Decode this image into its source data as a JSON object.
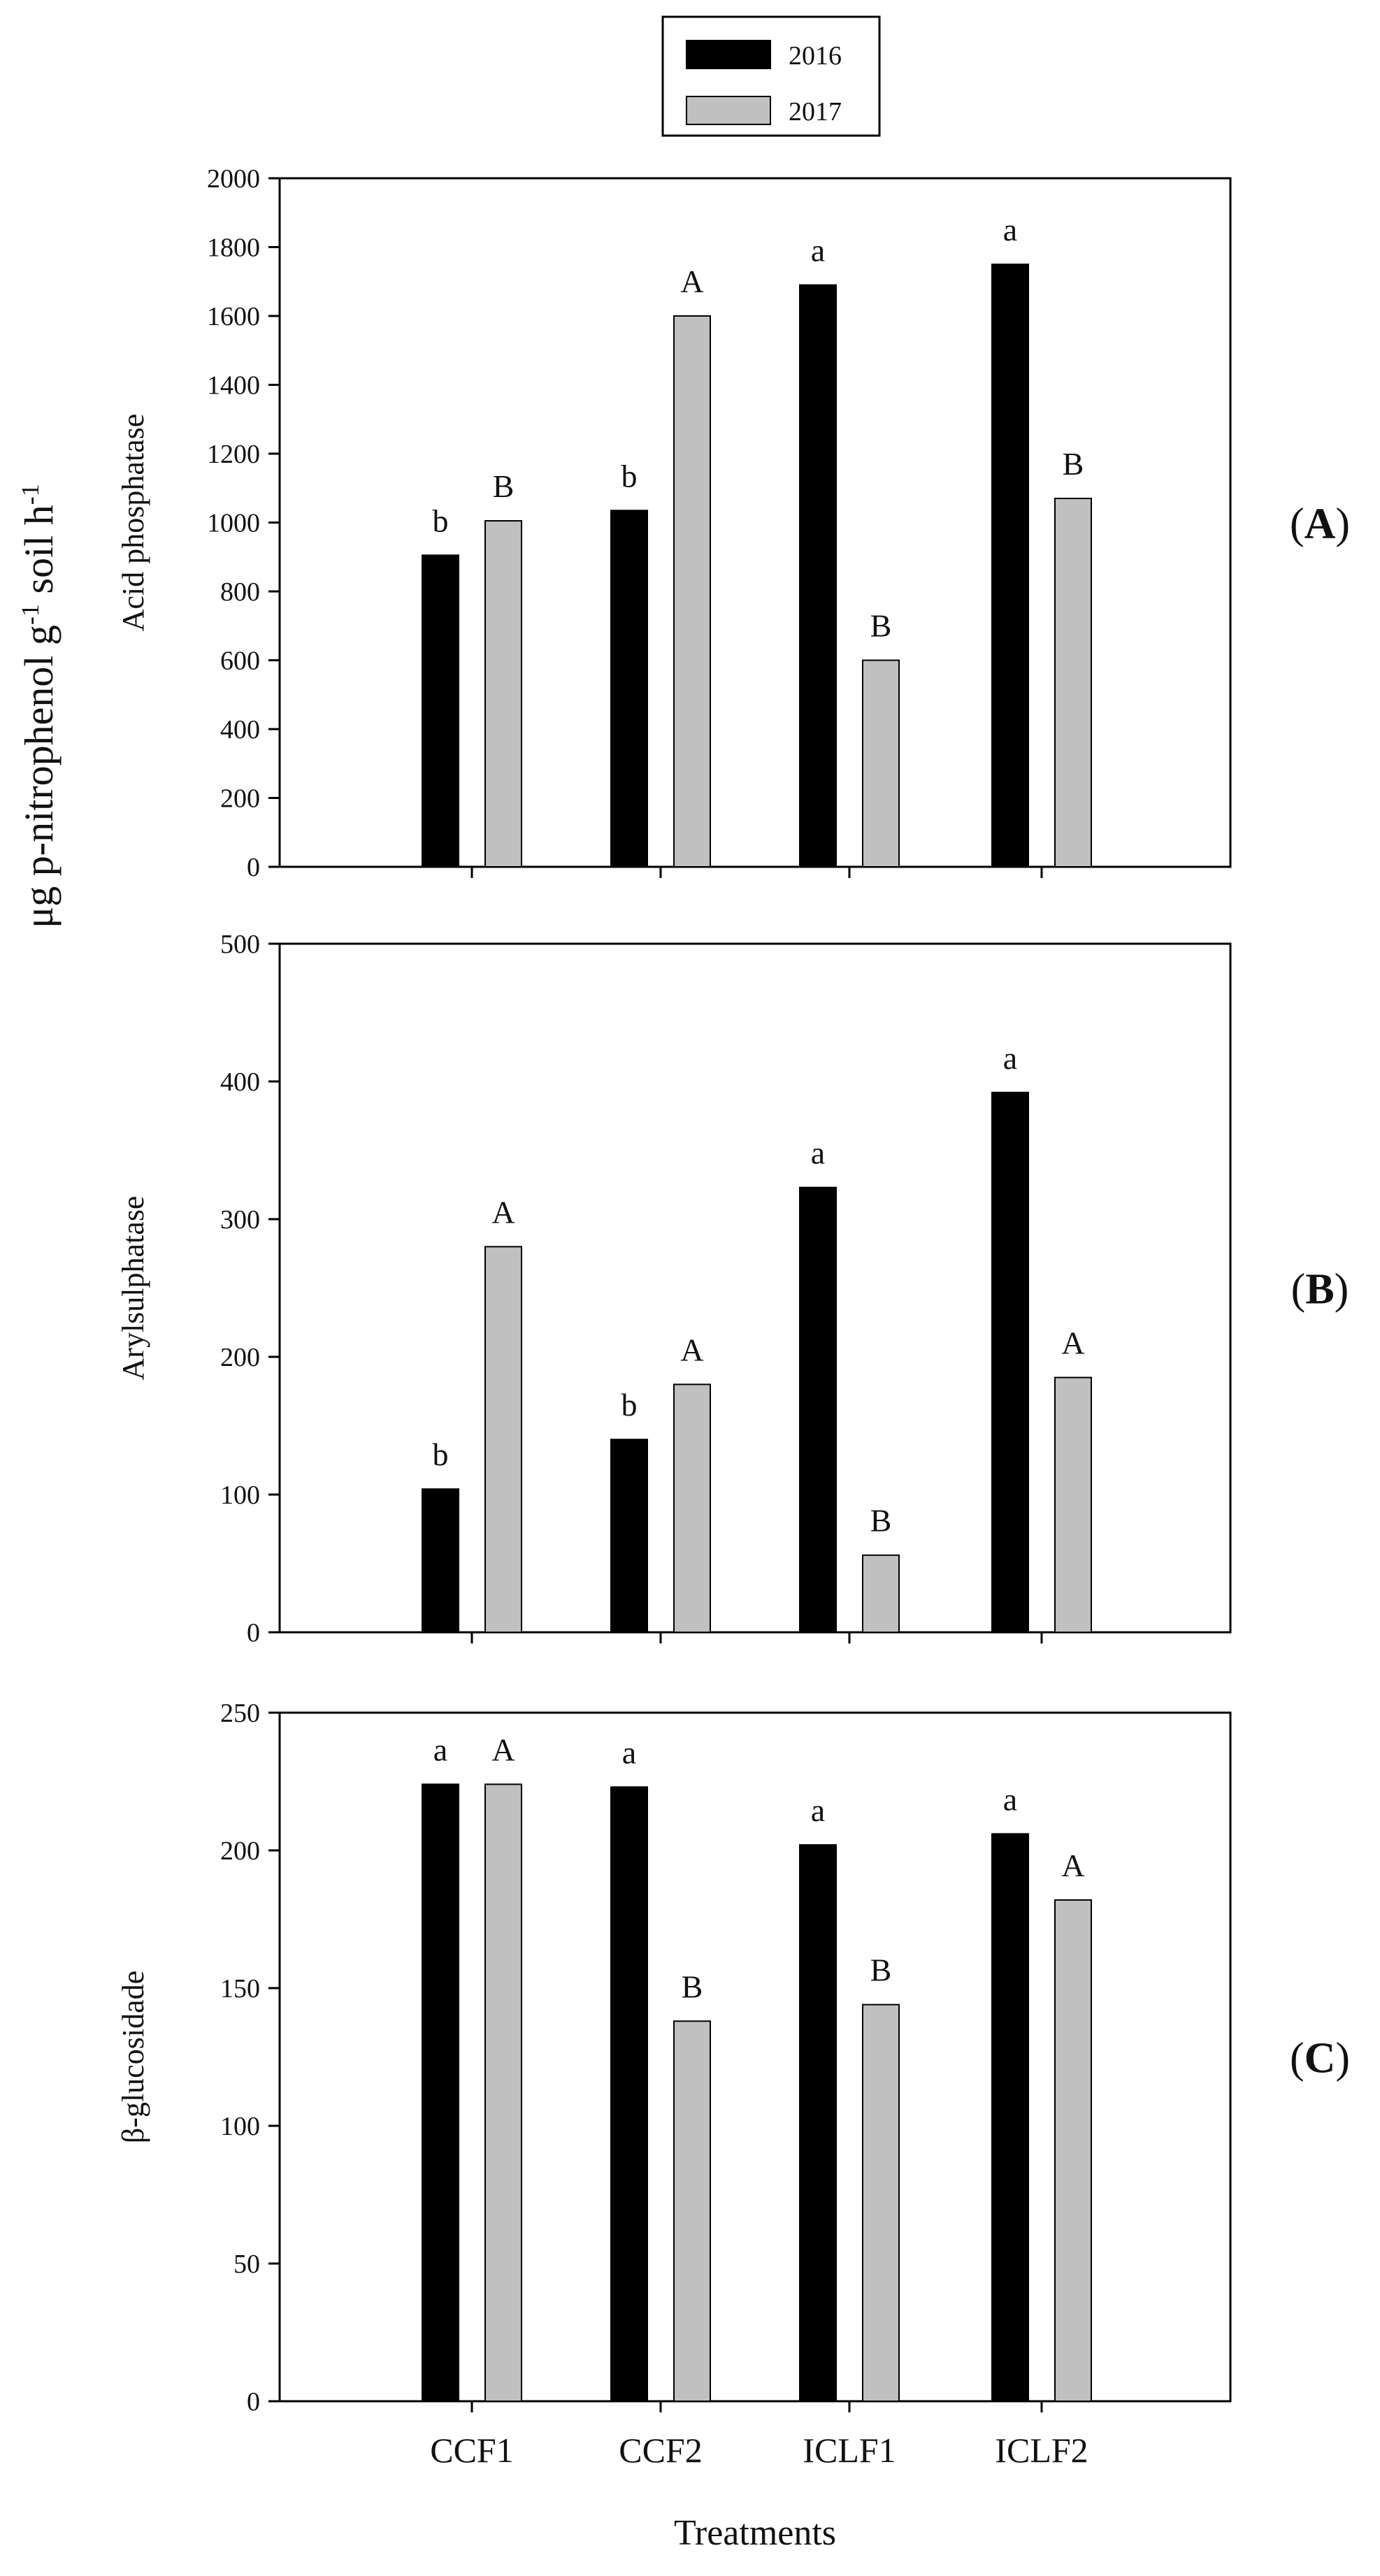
{
  "chart_data": {
    "type": "bar",
    "categories": [
      "CCF1",
      "CCF2",
      "ICLF1",
      "ICLF2"
    ],
    "legend": [
      {
        "name": "2016",
        "color": "#000000"
      },
      {
        "name": "2017",
        "color": "#c0c0c0"
      }
    ],
    "legend_position": "top-center",
    "common_ylabel_parts": [
      "μg p-nitrophenol g",
      "-1",
      " soil h",
      "-1"
    ],
    "xlabel": "Treatments",
    "panels": [
      {
        "tag_open": "(",
        "tag_letter": "A",
        "tag_close": ")",
        "ylabel": "Acid phosphatase",
        "ylim": [
          0,
          2000
        ],
        "yticks": [
          "0",
          "200",
          "400",
          "600",
          "800",
          "1000",
          "1200",
          "1400",
          "1600",
          "1800",
          "2000"
        ],
        "series": [
          {
            "name": "2016",
            "values": [
              905,
              1035,
              1690,
              1750
            ],
            "letters": [
              "b",
              "b",
              "a",
              "a"
            ]
          },
          {
            "name": "2017",
            "values": [
              1005,
              1600,
              600,
              1070
            ],
            "letters": [
              "B",
              "A",
              "B",
              "B"
            ]
          }
        ]
      },
      {
        "tag_open": "(",
        "tag_letter": "B",
        "tag_close": ")",
        "ylabel": "Arylsulphatase",
        "ylim": [
          0,
          500
        ],
        "yticks": [
          "0",
          "100",
          "200",
          "300",
          "400",
          "500"
        ],
        "series": [
          {
            "name": "2016",
            "values": [
              104,
              140,
              323,
              392
            ],
            "letters": [
              "b",
              "b",
              "a",
              "a"
            ]
          },
          {
            "name": "2017",
            "values": [
              280,
              180,
              56,
              185
            ],
            "letters": [
              "A",
              "A",
              "B",
              "A"
            ]
          }
        ]
      },
      {
        "tag_open": "(",
        "tag_letter": "C",
        "tag_close": ")",
        "ylabel": "β-glucosidade",
        "ylim": [
          0,
          250
        ],
        "yticks": [
          "0",
          "50",
          "100",
          "150",
          "200",
          "250"
        ],
        "series": [
          {
            "name": "2016",
            "values": [
              224,
              223,
              202,
              206
            ],
            "letters": [
              "a",
              "a",
              "a",
              "a"
            ]
          },
          {
            "name": "2017",
            "values": [
              224,
              138,
              144,
              182
            ],
            "letters": [
              "A",
              "B",
              "B",
              "A"
            ]
          }
        ]
      }
    ]
  }
}
